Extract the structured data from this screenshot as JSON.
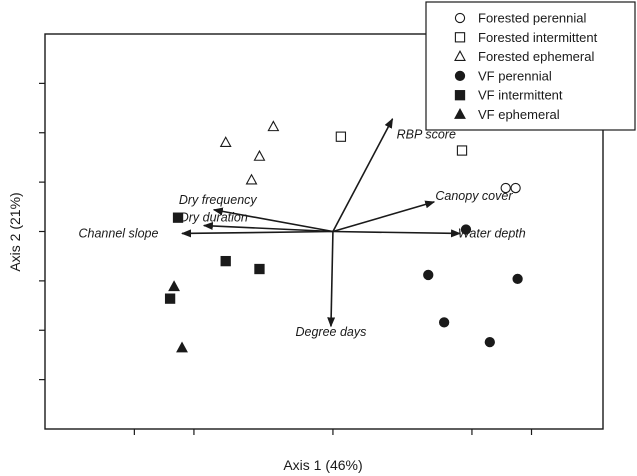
{
  "chart_data": {
    "type": "scatter",
    "title": "",
    "xlabel": "Axis 1 (46%)",
    "ylabel": "Axis 2 (21%)",
    "xlim": [
      -1.45,
      1.36
    ],
    "ylim": [
      -1.0,
      1.0
    ],
    "grid": false,
    "legend_position": "top-right",
    "x_ticks": [
      -1.0,
      -0.7,
      0.0,
      0.7,
      1.0
    ],
    "y_ticks": [
      -0.75,
      -0.5,
      -0.25,
      0.0,
      0.25,
      0.5,
      0.75
    ],
    "series": [
      {
        "name": "Forested perennial",
        "marker": "circle-open",
        "points": [
          [
            0.87,
            0.22
          ],
          [
            0.92,
            0.22
          ]
        ]
      },
      {
        "name": "Forested intermittent",
        "marker": "square-open",
        "points": [
          [
            0.04,
            0.48
          ],
          [
            0.65,
            0.41
          ]
        ]
      },
      {
        "name": "Forested ephemeral",
        "marker": "triangle-open",
        "points": [
          [
            -0.54,
            0.45
          ],
          [
            -0.3,
            0.53
          ],
          [
            -0.37,
            0.38
          ],
          [
            -0.41,
            0.26
          ]
        ]
      },
      {
        "name": "VF perennial",
        "marker": "circle-filled",
        "points": [
          [
            0.67,
            0.01
          ],
          [
            0.48,
            -0.22
          ],
          [
            0.56,
            -0.46
          ],
          [
            0.79,
            -0.56
          ],
          [
            0.93,
            -0.24
          ]
        ]
      },
      {
        "name": "VF intermittent",
        "marker": "square-filled",
        "points": [
          [
            -0.78,
            0.07
          ],
          [
            -0.54,
            -0.15
          ],
          [
            -0.37,
            -0.19
          ],
          [
            -0.82,
            -0.34
          ]
        ]
      },
      {
        "name": "VF ephemeral",
        "marker": "triangle-filled",
        "points": [
          [
            -0.8,
            -0.28
          ],
          [
            -0.76,
            -0.59
          ]
        ]
      }
    ],
    "vectors": [
      {
        "label": "RBP score",
        "x": 0.3,
        "y": 0.57,
        "label_x": 0.47,
        "label_y": 0.49
      },
      {
        "label": "Canopy cover",
        "x": 0.51,
        "y": 0.15,
        "label_x": 0.71,
        "label_y": 0.18
      },
      {
        "label": "Water depth",
        "x": 0.64,
        "y": -0.01,
        "label_x": 0.8,
        "label_y": -0.01
      },
      {
        "label": "Degree days",
        "x": -0.01,
        "y": -0.48,
        "label_x": -0.01,
        "label_y": -0.51
      },
      {
        "label": "Dry frequency",
        "x": -0.6,
        "y": 0.11,
        "label_x": -0.58,
        "label_y": 0.16
      },
      {
        "label": "Dry duration",
        "x": -0.65,
        "y": 0.03,
        "label_x": -0.6,
        "label_y": 0.07
      },
      {
        "label": "Channel slope",
        "x": -0.76,
        "y": -0.01,
        "label_x": -1.08,
        "label_y": -0.01
      }
    ],
    "colors": {
      "ink": "#1a1a1a",
      "background": "#ffffff"
    }
  }
}
